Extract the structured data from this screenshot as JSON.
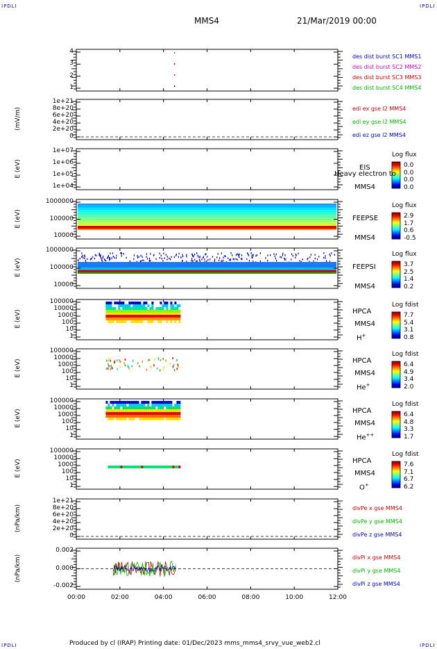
{
  "corner_label": "IPDLI",
  "header": {
    "spacecraft": "MMS4",
    "date": "21/Mar/2019 00:00"
  },
  "footer": {
    "text": "Produced by cl (IRAP)   Printing date: 01/Dec/2023   mms_mms4_srvy_vue_web2.cl"
  },
  "x_axis": {
    "ticks": [
      "00:00",
      "02:00",
      "04:00",
      "06:00",
      "08:00",
      "10:00",
      "12:00"
    ]
  },
  "panels": [
    {
      "id": "des",
      "ylabel": "",
      "ticks": [
        "4",
        "3",
        "2",
        "1"
      ],
      "legend": [
        {
          "text": "des dist burst SC1 MMS1",
          "color": "#0000c8"
        },
        {
          "text": "des dist burst SC2 MMS2",
          "color": "#c800c8"
        },
        {
          "text": "des dist burst SC3 MMS3",
          "color": "#c80000"
        },
        {
          "text": "des dist burst SC4 MMS4",
          "color": "#00b400"
        }
      ]
    },
    {
      "id": "edi",
      "ylabel": "(mV/m)",
      "ticks": [
        "1e+21",
        "8e+20",
        "6e+20",
        "4e+20",
        "2e+20",
        "0"
      ],
      "legend": [
        {
          "text": "edi ex gse l2 MMS4",
          "color": "#c80000"
        },
        {
          "text": "edi ey gse l2 MMS4",
          "color": "#00b400"
        },
        {
          "text": "edi ez gse l2 MMS4",
          "color": "#0000c8"
        }
      ]
    },
    {
      "id": "eis",
      "ylabel": "E (eV)",
      "ticks": [
        "1e+07",
        "1e+06",
        "1e+05",
        "1e+04"
      ],
      "inst": [
        "EIS",
        "MMS4"
      ],
      "overlay": "Heavy electron to",
      "cb": {
        "title": "Log flux",
        "vals": [
          "0.0",
          "0.0",
          "0.0",
          "0.0"
        ]
      }
    },
    {
      "id": "feepse",
      "ylabel": "E (eV)",
      "ticks": [
        "1000000",
        "100000",
        "10000"
      ],
      "inst": [
        "FEEPSE",
        "MMS4"
      ],
      "cb": {
        "title": "Log flux",
        "vals": [
          "2.9",
          "1.7",
          "0.6",
          "-0.5"
        ]
      }
    },
    {
      "id": "feepsi",
      "ylabel": "E (eV)",
      "ticks": [
        "1000000",
        "100000",
        "10000"
      ],
      "inst": [
        "FEEPSI",
        "MMS4"
      ],
      "cb": {
        "title": "Log flux",
        "vals": [
          "3.7",
          "2.5",
          "1.4",
          "0.2"
        ]
      }
    },
    {
      "id": "hpca_h",
      "ylabel": "E (eV)",
      "ticks": [
        "100000",
        "10000",
        "1000",
        "100",
        "10",
        "1"
      ],
      "inst": [
        "HPCA",
        "MMS4"
      ],
      "species": "H",
      "charge": "+",
      "cb": {
        "title": "Log fdist",
        "vals": [
          "7.7",
          "5.4",
          "3.1",
          "0.8"
        ]
      }
    },
    {
      "id": "hpca_he",
      "ylabel": "E (eV)",
      "ticks": [
        "100000",
        "10000",
        "1000",
        "100",
        "10",
        "1"
      ],
      "inst": [
        "HPCA",
        "MMS4"
      ],
      "species": "He",
      "charge": "+",
      "cb": {
        "title": "Log fdist",
        "vals": [
          "6.4",
          "4.9",
          "3.4",
          "2.0"
        ]
      }
    },
    {
      "id": "hpca_hepp",
      "ylabel": "E (eV)",
      "ticks": [
        "100000",
        "10000",
        "1000",
        "100",
        "10",
        "1"
      ],
      "inst": [
        "HPCA",
        "MMS4"
      ],
      "species": "He",
      "charge": "++",
      "cb": {
        "title": "Log fdist",
        "vals": [
          "6.4",
          "4.8",
          "3.3",
          "1.7"
        ]
      }
    },
    {
      "id": "hpca_o",
      "ylabel": "E (eV)",
      "ticks": [
        "100000",
        "10000",
        "1000",
        "100",
        "10",
        "1"
      ],
      "inst": [
        "HPCA",
        "MMS4"
      ],
      "species": "O",
      "charge": "+",
      "cb": {
        "title": "Log fdist",
        "vals": [
          "7.6",
          "7.1",
          "6.7",
          "6.2"
        ]
      }
    },
    {
      "id": "divpe",
      "ylabel": "(nPa/km)",
      "ticks": [
        "1e+21",
        "8e+20",
        "6e+20",
        "4e+20",
        "2e+20",
        "0"
      ],
      "legend": [
        {
          "text": "divPe x gse MMS4",
          "color": "#c80000"
        },
        {
          "text": "divPe y gse MMS4",
          "color": "#00b400"
        },
        {
          "text": "divPe z gse MMS4",
          "color": "#0000c8"
        }
      ]
    },
    {
      "id": "divpi",
      "ylabel": "(nPa/km)",
      "ticks": [
        "0.002",
        "0.000",
        "-0.002"
      ],
      "legend": [
        {
          "text": "divPi x gse MMS4",
          "color": "#c80000"
        },
        {
          "text": "divPi y gse MMS4",
          "color": "#00b400"
        },
        {
          "text": "divPi z gse MMS4",
          "color": "#0000c8"
        }
      ]
    }
  ],
  "chart_data": {
    "type": "heatmap",
    "x_range_hours": [
      0,
      12
    ],
    "des_burst_times_hours": [
      4.5,
      4.5,
      4.5,
      4.5
    ],
    "hpca_active_hours": [
      1.35,
      4.7
    ],
    "divpi_active_hours": [
      1.7,
      4.6
    ],
    "divpi_range": [
      -0.003,
      0.003
    ]
  }
}
